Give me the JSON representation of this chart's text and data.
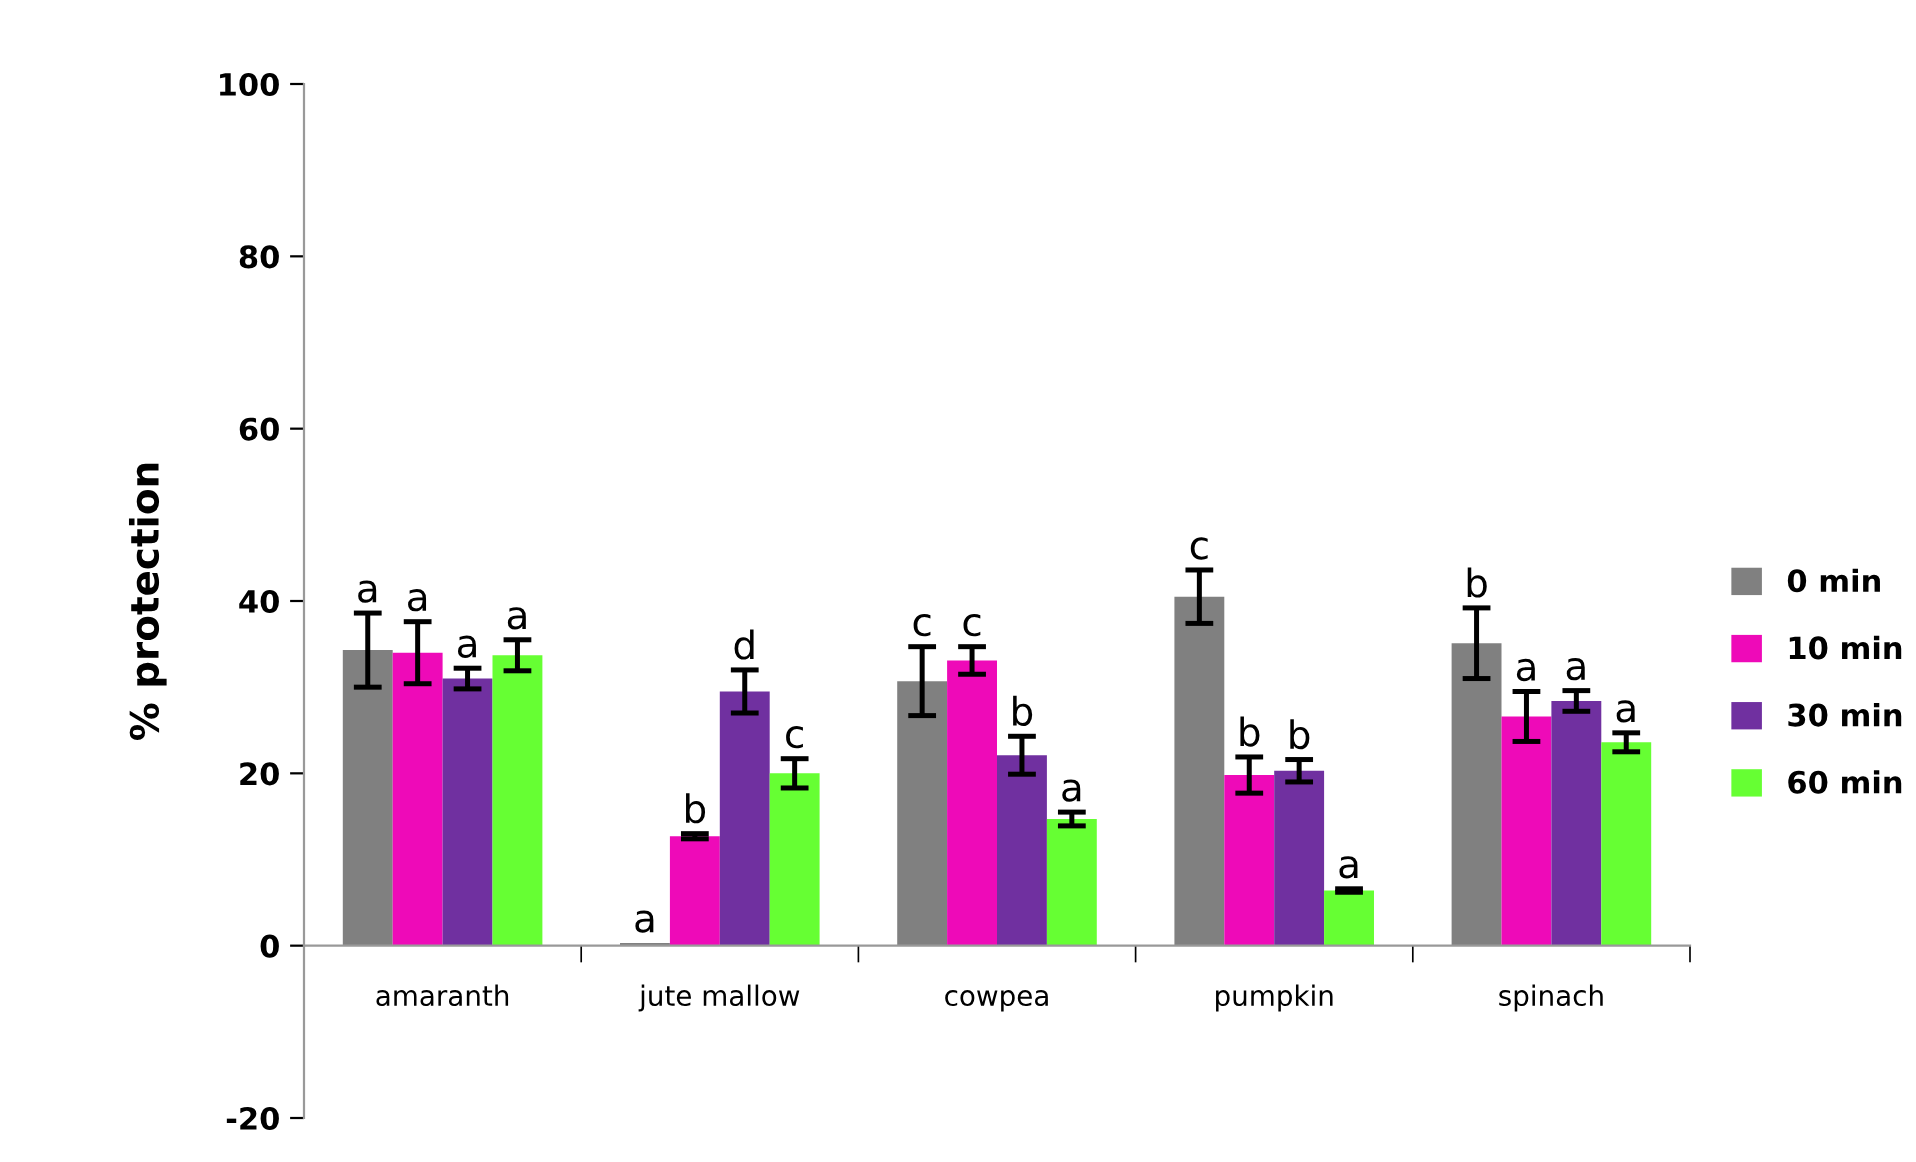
{
  "chart_data": {
    "type": "bar",
    "ylabel": "% protection",
    "categories": [
      "amaranth",
      "jute mallow",
      "cowpea",
      "pumpkin",
      "spinach"
    ],
    "series": [
      {
        "name": "0 min",
        "color": "#808080",
        "values": [
          34.3,
          0.3,
          30.7,
          40.5,
          35.1
        ],
        "errors": [
          4.3,
          null,
          4.0,
          3.1,
          4.1
        ],
        "value_labels": [
          "a",
          "a",
          "c",
          "c",
          "b"
        ]
      },
      {
        "name": "10 min",
        "color": "#ee0ab8",
        "values": [
          34.0,
          12.7,
          33.1,
          19.8,
          26.6
        ],
        "errors": [
          3.6,
          0.3,
          1.6,
          2.1,
          2.9
        ],
        "value_labels": [
          "a",
          "b",
          "c",
          "b",
          "a"
        ]
      },
      {
        "name": "30 min",
        "color": "#7030a0",
        "values": [
          31.0,
          29.5,
          22.1,
          20.3,
          28.4
        ],
        "errors": [
          1.2,
          2.5,
          2.2,
          1.3,
          1.2
        ],
        "value_labels": [
          "a",
          "d",
          "b",
          "b",
          "a"
        ]
      },
      {
        "name": "60 min",
        "color": "#66ff33",
        "values": [
          33.7,
          20.0,
          14.7,
          6.4,
          23.6
        ],
        "errors": [
          1.8,
          1.7,
          0.8,
          0.2,
          1.1
        ],
        "value_labels": [
          "a",
          "c",
          "a",
          "a",
          "a"
        ]
      }
    ],
    "ylim": [
      -20,
      100
    ],
    "yticks": [
      -20,
      0,
      20,
      40,
      60,
      80,
      100
    ],
    "grid": false,
    "legend": "right"
  }
}
